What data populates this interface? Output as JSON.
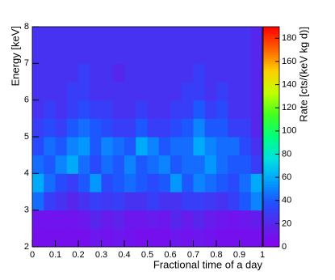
{
  "chart_data": {
    "type": "heatmap",
    "xlabel": "Fractional time of a day",
    "ylabel": "Energy [keV]",
    "zlabel": "Rate [cts/(keV kg d)]",
    "x_bins": [
      0,
      0.05,
      0.1,
      0.15,
      0.2,
      0.25,
      0.3,
      0.35,
      0.4,
      0.45,
      0.5,
      0.55,
      0.6,
      0.65,
      0.7,
      0.75,
      0.8,
      0.85,
      0.9,
      0.95,
      1
    ],
    "y_bins": [
      2,
      2.5,
      3,
      3.5,
      4,
      4.5,
      5,
      5.5,
      6,
      6.5,
      7,
      7.5,
      8
    ],
    "z": [
      [
        8,
        8,
        8,
        8,
        8,
        12,
        10,
        12,
        10,
        8,
        8,
        8,
        12,
        10,
        12,
        10,
        8,
        8,
        8,
        8
      ],
      [
        10,
        10,
        10,
        10,
        12,
        20,
        14,
        18,
        12,
        12,
        14,
        12,
        20,
        14,
        20,
        14,
        12,
        10,
        12,
        15
      ],
      [
        45,
        30,
        25,
        20,
        25,
        30,
        28,
        30,
        25,
        25,
        30,
        25,
        25,
        30,
        30,
        28,
        25,
        30,
        40,
        50
      ],
      [
        60,
        45,
        35,
        30,
        40,
        55,
        35,
        40,
        45,
        40,
        35,
        40,
        55,
        40,
        50,
        45,
        40,
        35,
        45,
        60
      ],
      [
        45,
        40,
        50,
        60,
        45,
        35,
        45,
        40,
        50,
        40,
        45,
        50,
        40,
        45,
        45,
        55,
        45,
        40,
        40,
        30
      ],
      [
        35,
        45,
        40,
        50,
        55,
        40,
        50,
        45,
        40,
        60,
        50,
        40,
        45,
        45,
        60,
        50,
        45,
        45,
        35,
        25
      ],
      [
        30,
        35,
        30,
        40,
        45,
        40,
        35,
        30,
        30,
        40,
        30,
        30,
        35,
        40,
        50,
        40,
        40,
        30,
        30,
        20
      ],
      [
        25,
        30,
        25,
        30,
        35,
        30,
        30,
        25,
        25,
        30,
        25,
        25,
        30,
        30,
        40,
        30,
        35,
        25,
        25,
        20
      ],
      [
        25,
        25,
        25,
        30,
        30,
        25,
        25,
        25,
        25,
        25,
        25,
        25,
        25,
        30,
        30,
        25,
        30,
        25,
        25,
        20
      ],
      [
        25,
        25,
        25,
        25,
        30,
        25,
        25,
        20,
        25,
        25,
        25,
        25,
        25,
        25,
        30,
        25,
        25,
        25,
        25,
        20
      ],
      [
        25,
        25,
        25,
        25,
        25,
        25,
        25,
        25,
        25,
        25,
        25,
        25,
        25,
        25,
        25,
        25,
        25,
        25,
        25,
        20
      ],
      [
        25,
        25,
        25,
        25,
        25,
        25,
        25,
        25,
        25,
        25,
        25,
        25,
        25,
        25,
        25,
        25,
        25,
        25,
        25,
        20
      ]
    ],
    "xlim": [
      0,
      1
    ],
    "xticks": [
      0,
      0.1,
      0.2,
      0.3,
      0.4,
      0.5,
      0.6,
      0.7,
      0.8,
      0.9,
      1
    ],
    "ylim": [
      2,
      8
    ],
    "yticks": [
      2,
      3,
      4,
      5,
      6,
      7,
      8
    ],
    "zlim": [
      0,
      190
    ],
    "zticks": [
      0,
      20,
      40,
      60,
      80,
      100,
      120,
      140,
      160,
      180
    ],
    "colorscale": [
      "#8a00f0",
      "#5a24ec",
      "#2050ff",
      "#00a0ff",
      "#00e0e0",
      "#00ff80",
      "#40ff20",
      "#c0ff00",
      "#ffd000",
      "#ff6000",
      "#ff0000"
    ]
  }
}
